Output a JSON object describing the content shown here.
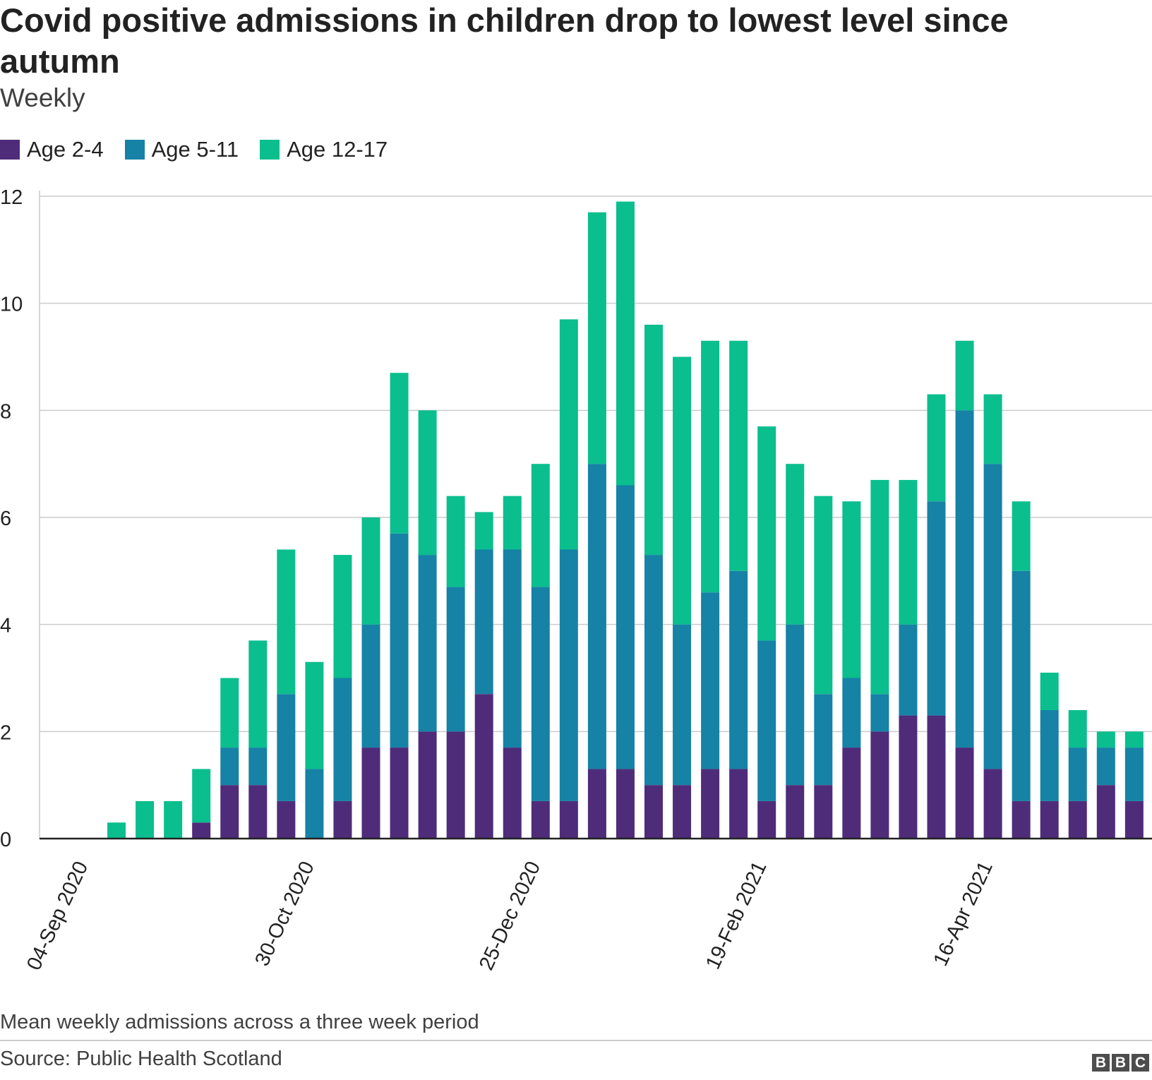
{
  "header": {
    "title": "Covid positive admissions in children drop to lowest level since autumn",
    "subtitle": "Weekly"
  },
  "legend": [
    {
      "label": "Age 2-4",
      "color": "#4e2c7a"
    },
    {
      "label": "Age 5-11",
      "color": "#1682a6"
    },
    {
      "label": "Age 12-17",
      "color": "#0bbe8e"
    }
  ],
  "chart_data": {
    "type": "bar",
    "stacked": true,
    "title": "Covid positive admissions in children drop to lowest level since autumn",
    "subtitle": "Weekly",
    "xlabel": "",
    "ylabel": "",
    "ylim": [
      0,
      12
    ],
    "yticks": [
      0,
      2,
      4,
      6,
      8,
      10,
      12
    ],
    "grid": true,
    "legend_position": "top-left",
    "x_tick_labels": [
      {
        "index": 0,
        "label": "04-Sep 2020"
      },
      {
        "index": 8,
        "label": "30-Oct 2020"
      },
      {
        "index": 16,
        "label": "25-Dec 2020"
      },
      {
        "index": 24,
        "label": "19-Feb 2021"
      },
      {
        "index": 32,
        "label": "16-Apr 2021"
      }
    ],
    "categories": [
      "04-Sep 2020",
      "11-Sep 2020",
      "18-Sep 2020",
      "25-Sep 2020",
      "02-Oct 2020",
      "09-Oct 2020",
      "16-Oct 2020",
      "23-Oct 2020",
      "30-Oct 2020",
      "06-Nov 2020",
      "13-Nov 2020",
      "20-Nov 2020",
      "27-Nov 2020",
      "04-Dec 2020",
      "11-Dec 2020",
      "18-Dec 2020",
      "25-Dec 2020",
      "01-Jan 2021",
      "08-Jan 2021",
      "15-Jan 2021",
      "22-Jan 2021",
      "29-Jan 2021",
      "05-Feb 2021",
      "12-Feb 2021",
      "19-Feb 2021",
      "26-Feb 2021",
      "05-Mar 2021",
      "12-Mar 2021",
      "19-Mar 2021",
      "26-Mar 2021",
      "02-Apr 2021",
      "09-Apr 2021",
      "16-Apr 2021",
      "23-Apr 2021",
      "30-Apr 2021",
      "07-May 2021",
      "14-May 2021",
      "21-May 2021",
      "28-May 2021"
    ],
    "series": [
      {
        "name": "Age 2-4",
        "color": "#4e2c7a",
        "values": [
          0,
          0,
          0,
          0,
          0.3,
          1.0,
          1.0,
          0.7,
          0,
          0.7,
          1.7,
          1.7,
          2.0,
          2.0,
          2.7,
          1.7,
          0.7,
          0.7,
          1.3,
          1.3,
          1.0,
          1.0,
          1.3,
          1.3,
          0.7,
          1.0,
          1.0,
          1.7,
          2.0,
          2.3,
          2.3,
          1.7,
          1.3,
          0.7,
          0.7,
          0.7,
          1.0,
          0.7,
          0
        ]
      },
      {
        "name": "Age 5-11",
        "color": "#1682a6",
        "values": [
          0,
          0,
          0,
          0,
          0,
          0.7,
          0.7,
          2.0,
          1.3,
          2.3,
          2.3,
          4.0,
          3.3,
          2.7,
          2.7,
          3.7,
          4.0,
          4.7,
          5.7,
          5.3,
          4.3,
          3.0,
          3.3,
          3.7,
          3.0,
          3.0,
          1.7,
          1.3,
          0.7,
          1.7,
          4.0,
          6.3,
          5.7,
          4.3,
          1.7,
          1.0,
          0.7,
          1.0,
          0
        ]
      },
      {
        "name": "Age 12-17",
        "color": "#0bbe8e",
        "values": [
          0,
          0.3,
          0.7,
          0.7,
          1.0,
          1.3,
          2.0,
          2.7,
          2.0,
          2.3,
          2.0,
          3.0,
          2.7,
          1.7,
          0.7,
          1.0,
          2.3,
          4.3,
          4.7,
          5.3,
          4.3,
          5.0,
          4.7,
          4.3,
          4.0,
          3.0,
          3.7,
          3.3,
          4.0,
          2.7,
          2.0,
          1.3,
          1.3,
          1.3,
          0.7,
          0.7,
          0.3,
          0.3,
          0
        ]
      }
    ]
  },
  "footer": {
    "note": "Mean weekly admissions across a three week period",
    "source": "Source: Public Health Scotland",
    "logo": [
      "B",
      "B",
      "C"
    ]
  }
}
